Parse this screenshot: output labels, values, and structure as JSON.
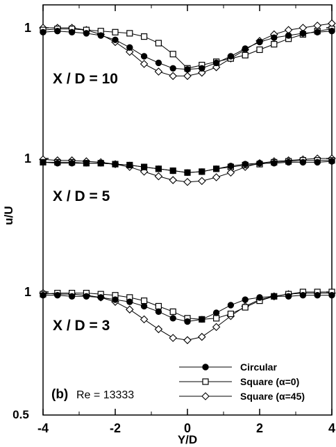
{
  "chart_data": {
    "type": "line",
    "xlabel": "Y/D",
    "ylabel": "u/U",
    "xlim": [
      -4,
      4
    ],
    "ylim": [
      0.5,
      1.0
    ],
    "x_ticks": [
      "-4",
      "-2",
      "0",
      "2",
      "4"
    ],
    "y_bottom_label": "0.5",
    "panel_tick_label": "1",
    "grid": false,
    "legend_position": "bottom-right",
    "panel_label": "(b)",
    "re_label": "Re = 13333",
    "legend": [
      {
        "label": "Circular",
        "marker": "filled-circle"
      },
      {
        "label": "Square (α=0)",
        "marker": "open-square"
      },
      {
        "label": "Square (α=45)",
        "marker": "open-diamond"
      }
    ],
    "x": [
      -4,
      -3.6,
      -3.2,
      -2.8,
      -2.4,
      -2.0,
      -1.6,
      -1.2,
      -0.8,
      -0.4,
      0,
      0.4,
      0.8,
      1.2,
      1.6,
      2.0,
      2.4,
      2.8,
      3.2,
      3.6,
      4.0
    ],
    "panels": [
      {
        "label": "X / D = 10",
        "series": [
          {
            "name": "Circular",
            "values": [
              0.98,
              0.985,
              0.98,
              0.975,
              0.965,
              0.945,
              0.91,
              0.87,
              0.84,
              0.815,
              0.81,
              0.815,
              0.84,
              0.87,
              0.905,
              0.935,
              0.955,
              0.965,
              0.975,
              0.98,
              0.985
            ]
          },
          {
            "name": "Square (α=0)",
            "values": [
              0.99,
              0.995,
              0.995,
              0.99,
              0.985,
              0.98,
              0.975,
              0.96,
              0.93,
              0.88,
              0.815,
              0.83,
              0.845,
              0.86,
              0.875,
              0.9,
              0.925,
              0.95,
              0.97,
              0.985,
              0.995
            ]
          },
          {
            "name": "Square (α=45)",
            "values": [
              1.0,
              1.0,
              1.0,
              0.99,
              0.97,
              0.935,
              0.89,
              0.835,
              0.8,
              0.78,
              0.78,
              0.795,
              0.82,
              0.86,
              0.9,
              0.94,
              0.97,
              0.99,
              1.0,
              1.01,
              1.02
            ]
          }
        ]
      },
      {
        "label": "X / D = 5",
        "series": [
          {
            "name": "Circular",
            "values": [
              0.98,
              0.975,
              0.975,
              0.975,
              0.975,
              0.97,
              0.965,
              0.955,
              0.945,
              0.935,
              0.925,
              0.93,
              0.945,
              0.96,
              0.97,
              0.975,
              0.975,
              0.98,
              0.98,
              0.98,
              0.985
            ]
          },
          {
            "name": "Square (α=0)",
            "values": [
              0.98,
              0.98,
              0.98,
              0.975,
              0.975,
              0.97,
              0.965,
              0.955,
              0.945,
              0.935,
              0.925,
              0.93,
              0.945,
              0.955,
              0.965,
              0.97,
              0.98,
              0.985,
              0.99,
              0.99,
              0.99
            ]
          },
          {
            "name": "Square (α=45)",
            "values": [
              0.995,
              0.99,
              0.99,
              0.985,
              0.98,
              0.97,
              0.955,
              0.93,
              0.905,
              0.885,
              0.875,
              0.88,
              0.9,
              0.925,
              0.955,
              0.975,
              0.985,
              0.99,
              0.995,
              1.0,
              1.0
            ]
          }
        ]
      },
      {
        "label": "X / D = 3",
        "series": [
          {
            "name": "Circular",
            "values": [
              0.985,
              0.985,
              0.98,
              0.98,
              0.975,
              0.965,
              0.955,
              0.935,
              0.91,
              0.88,
              0.865,
              0.875,
              0.905,
              0.94,
              0.965,
              0.975,
              0.98,
              0.98,
              0.985,
              0.985,
              0.985
            ]
          },
          {
            "name": "Square (α=0)",
            "values": [
              0.99,
              0.995,
              0.995,
              0.995,
              0.99,
              0.985,
              0.975,
              0.96,
              0.935,
              0.91,
              0.88,
              0.875,
              0.88,
              0.9,
              0.93,
              0.96,
              0.98,
              0.99,
              1.0,
              1.0,
              1.0
            ]
          },
          {
            "name": "Square (α=45)",
            "values": [
              0.995,
              0.99,
              0.99,
              0.985,
              0.975,
              0.955,
              0.92,
              0.875,
              0.83,
              0.79,
              0.78,
              0.795,
              0.84,
              0.89,
              0.935,
              0.965,
              0.98,
              0.99,
              0.995,
              0.995,
              0.995
            ]
          }
        ]
      }
    ]
  }
}
